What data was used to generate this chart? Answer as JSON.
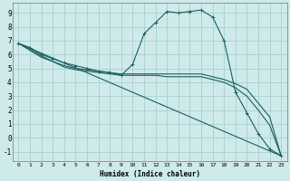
{
  "xlabel": "Humidex (Indice chaleur)",
  "background_color": "#ceeaea",
  "grid_color": "#aacfcf",
  "line_color": "#1a6060",
  "xlim": [
    -0.5,
    23.5
  ],
  "ylim": [
    -1.7,
    9.7
  ],
  "xticks": [
    0,
    1,
    2,
    3,
    4,
    5,
    6,
    7,
    8,
    9,
    10,
    11,
    12,
    13,
    14,
    15,
    16,
    17,
    18,
    19,
    20,
    21,
    22,
    23
  ],
  "yticks": [
    -1,
    0,
    1,
    2,
    3,
    4,
    5,
    6,
    7,
    8,
    9
  ],
  "series": [
    {
      "x": [
        0,
        1,
        2,
        3,
        4,
        5,
        6,
        7,
        8,
        9,
        10,
        11,
        12,
        13,
        14,
        15,
        16,
        17,
        18,
        19,
        20,
        21,
        22,
        23
      ],
      "y": [
        6.8,
        6.5,
        6.0,
        5.7,
        5.4,
        5.2,
        5.0,
        4.8,
        4.7,
        4.5,
        5.3,
        7.5,
        8.3,
        9.1,
        9.0,
        9.1,
        9.2,
        8.7,
        7.0,
        3.3,
        1.8,
        0.3,
        -0.8,
        -1.3
      ],
      "marker": true
    },
    {
      "x": [
        0,
        23
      ],
      "y": [
        6.8,
        -1.3
      ],
      "marker": false
    },
    {
      "x": [
        0,
        1,
        2,
        3,
        4,
        5,
        6,
        7,
        8,
        9,
        10,
        11,
        12,
        13,
        14,
        15,
        16,
        17,
        18,
        19,
        20,
        21,
        22,
        23
      ],
      "y": [
        6.8,
        6.3,
        5.8,
        5.5,
        5.2,
        5.0,
        4.9,
        4.8,
        4.7,
        4.6,
        4.6,
        4.6,
        4.6,
        4.6,
        4.6,
        4.6,
        4.6,
        4.4,
        4.2,
        3.9,
        3.5,
        2.5,
        1.5,
        -1.3
      ],
      "marker": false
    },
    {
      "x": [
        0,
        1,
        2,
        3,
        4,
        5,
        6,
        7,
        8,
        9,
        10,
        11,
        12,
        13,
        14,
        15,
        16,
        17,
        18,
        19,
        20,
        21,
        22,
        23
      ],
      "y": [
        6.8,
        6.4,
        5.9,
        5.5,
        5.1,
        4.9,
        4.8,
        4.7,
        4.6,
        4.5,
        4.5,
        4.5,
        4.5,
        4.4,
        4.4,
        4.4,
        4.4,
        4.2,
        4.0,
        3.6,
        3.0,
        2.0,
        0.9,
        -1.3
      ],
      "marker": false
    }
  ]
}
